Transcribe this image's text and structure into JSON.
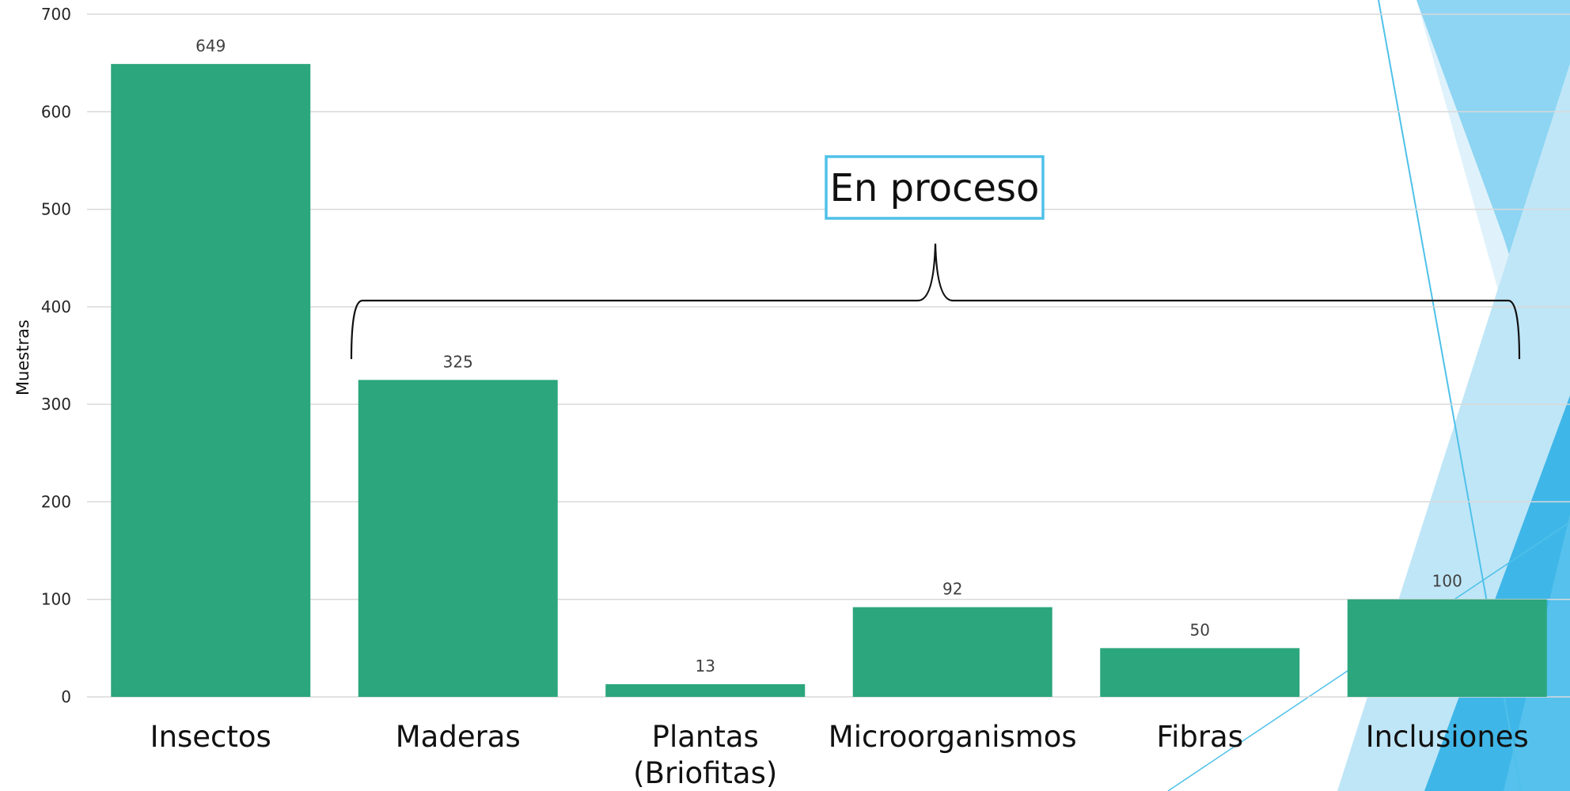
{
  "chart_data": {
    "type": "bar",
    "categories": [
      "Insectos",
      "Maderas",
      "Plantas (Briofitas)",
      "Microorganismos",
      "Fibras",
      "Inclusiones"
    ],
    "category_lines": [
      [
        "Insectos"
      ],
      [
        "Maderas"
      ],
      [
        "Plantas",
        "(Briofitas)"
      ],
      [
        "Microorganismos"
      ],
      [
        "Fibras"
      ],
      [
        "Inclusiones"
      ]
    ],
    "values": [
      649,
      325,
      13,
      92,
      50,
      100
    ],
    "data_labels": [
      "649",
      "325",
      "13",
      "92",
      "50",
      "100"
    ],
    "title": "",
    "xlabel": "",
    "ylabel": "Muestras",
    "ylim": [
      0,
      700
    ],
    "yticks": [
      0,
      100,
      200,
      300,
      400,
      500,
      600,
      700
    ],
    "grid": true,
    "legend": "none",
    "annotation": {
      "text": "En proceso",
      "brace_covers": [
        "Maderas",
        "Plantas (Briofitas)",
        "Microorganismos",
        "Fibras",
        "Inclusiones"
      ]
    }
  },
  "colors": {
    "bar": "#2ca67d",
    "gridline": "#d9d9d9",
    "callout_border": "#4fc1e9",
    "decoration_light": "#bfe6f7",
    "decoration_mid": "#7fd0f0",
    "decoration_dark": "#3fb6e8"
  }
}
